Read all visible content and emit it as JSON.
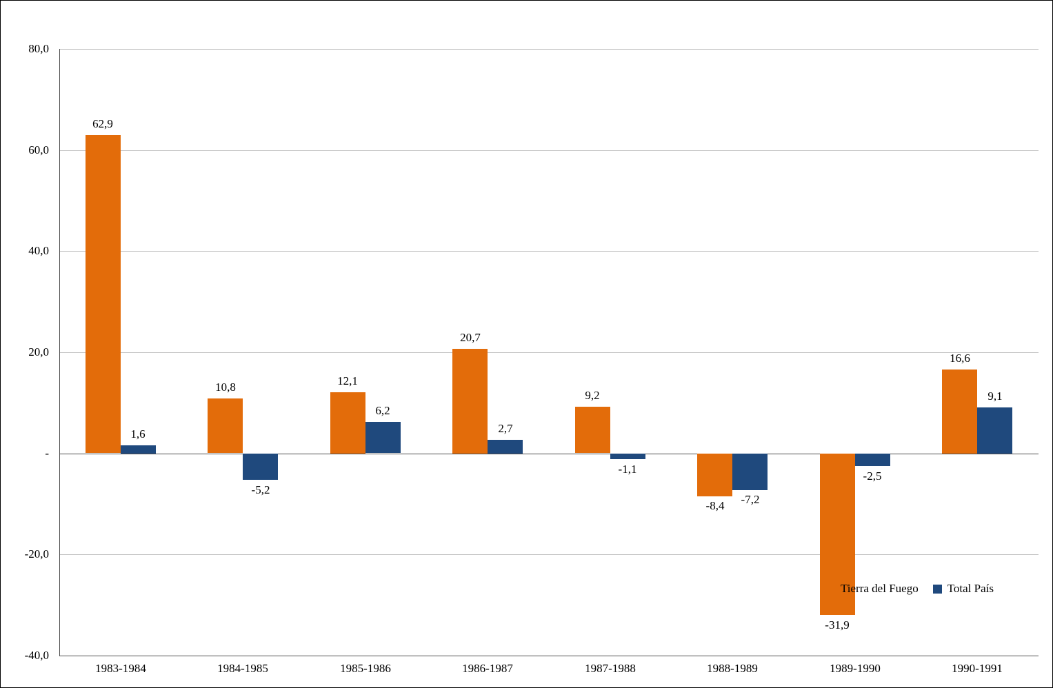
{
  "chart_data": {
    "type": "bar",
    "title": "",
    "categories": [
      "1983-1984",
      "1984-1985",
      "1985-1986",
      "1986-1987",
      "1987-1988",
      "1988-1989",
      "1989-1990",
      "1990-1991"
    ],
    "series": [
      {
        "name": "Tierra del Fuego",
        "color": "#E36C0A",
        "values": [
          62.9,
          10.8,
          12.1,
          20.7,
          9.2,
          -8.4,
          -31.9,
          16.6
        ],
        "labels": [
          "62,9",
          "10,8",
          "12,1",
          "20,7",
          "9,2",
          "-8,4",
          "-31,9",
          "16,6"
        ]
      },
      {
        "name": "Total País",
        "color": "#1F497D",
        "values": [
          1.6,
          -5.2,
          6.2,
          2.7,
          -1.1,
          -7.2,
          -2.5,
          9.1
        ],
        "labels": [
          "1,6",
          "-5,2",
          "6,2",
          "2,7",
          "-1,1",
          "-7,2",
          "-2,5",
          "9,1"
        ]
      }
    ],
    "y_axis": {
      "min": -40,
      "max": 80,
      "step": 20,
      "ticks": [
        80,
        60,
        40,
        20,
        0,
        -20,
        -40
      ],
      "tick_labels": [
        "80,0",
        "60,0",
        "40,0",
        "20,0",
        "-",
        "-20,0",
        "-40,0"
      ]
    },
    "x_axis": {
      "label": ""
    },
    "legend": {
      "position": "inside-bottom-right",
      "items": [
        "Tierra del Fuego",
        "Total País"
      ]
    },
    "grid": true,
    "decimal_separator": ","
  }
}
